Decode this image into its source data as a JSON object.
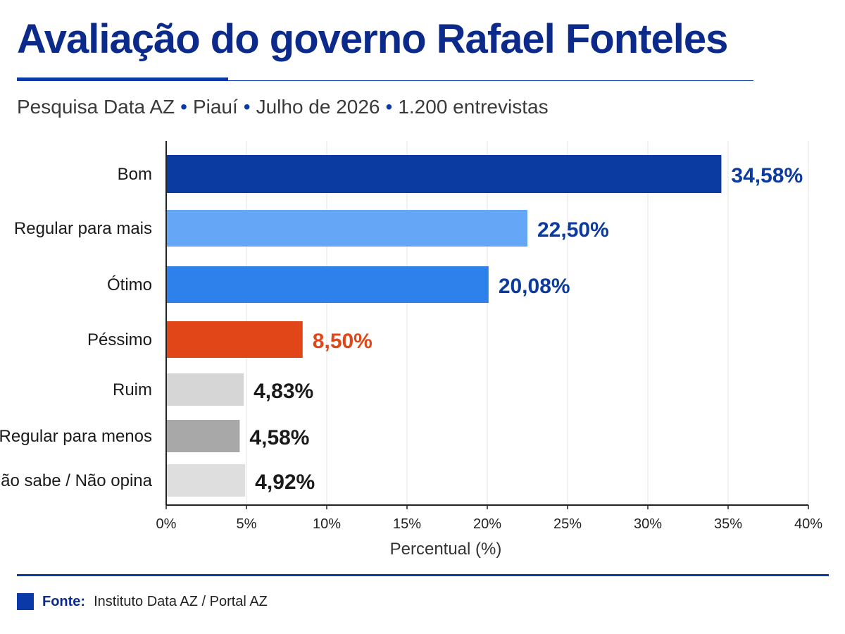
{
  "header": {
    "title": "Avaliação do governo Rafael Fonteles",
    "subtitle_parts": [
      "Pesquisa Data AZ",
      "Piauí",
      "Julho de 2026",
      "1.200 entrevistas"
    ],
    "separator": "•"
  },
  "footer": {
    "source_label": "Fonte:",
    "source_text": "Instituto Data AZ / Portal AZ",
    "source_color": "#0b3aa8"
  },
  "chart_data": {
    "type": "bar",
    "orientation": "horizontal",
    "categories": [
      "Bom",
      "Regular para mais",
      "Ótimo",
      "Péssimo",
      "Ruim",
      "Regular para menos",
      "Não sabe / Não opina"
    ],
    "values": [
      34.58,
      22.5,
      20.08,
      8.5,
      4.83,
      4.58,
      4.92
    ],
    "value_labels": [
      "34,58%",
      "22,50%",
      "20,08%",
      "8,50%",
      "4,83%",
      "4,58%",
      "4,92%"
    ],
    "bar_colors": [
      "#0b3aa0",
      "#66a6f7",
      "#2e80ea",
      "#e04618",
      "#d6d6d6",
      "#a8a8a8",
      "#dedede"
    ],
    "label_colors": [
      "#0b3aa0",
      "#0b3aa0",
      "#0b3aa0",
      "#e04618",
      "#1a1a1a",
      "#1a1a1a",
      "#1a1a1a"
    ],
    "xlabel": "Percentual (%)",
    "xlim": [
      0,
      40
    ],
    "xticks": [
      0,
      5,
      10,
      15,
      20,
      25,
      30,
      35,
      40
    ],
    "xtick_labels": [
      "0%",
      "5%",
      "10%",
      "15%",
      "20%",
      "25%",
      "30%",
      "35%",
      "40%"
    ],
    "grid": true
  }
}
